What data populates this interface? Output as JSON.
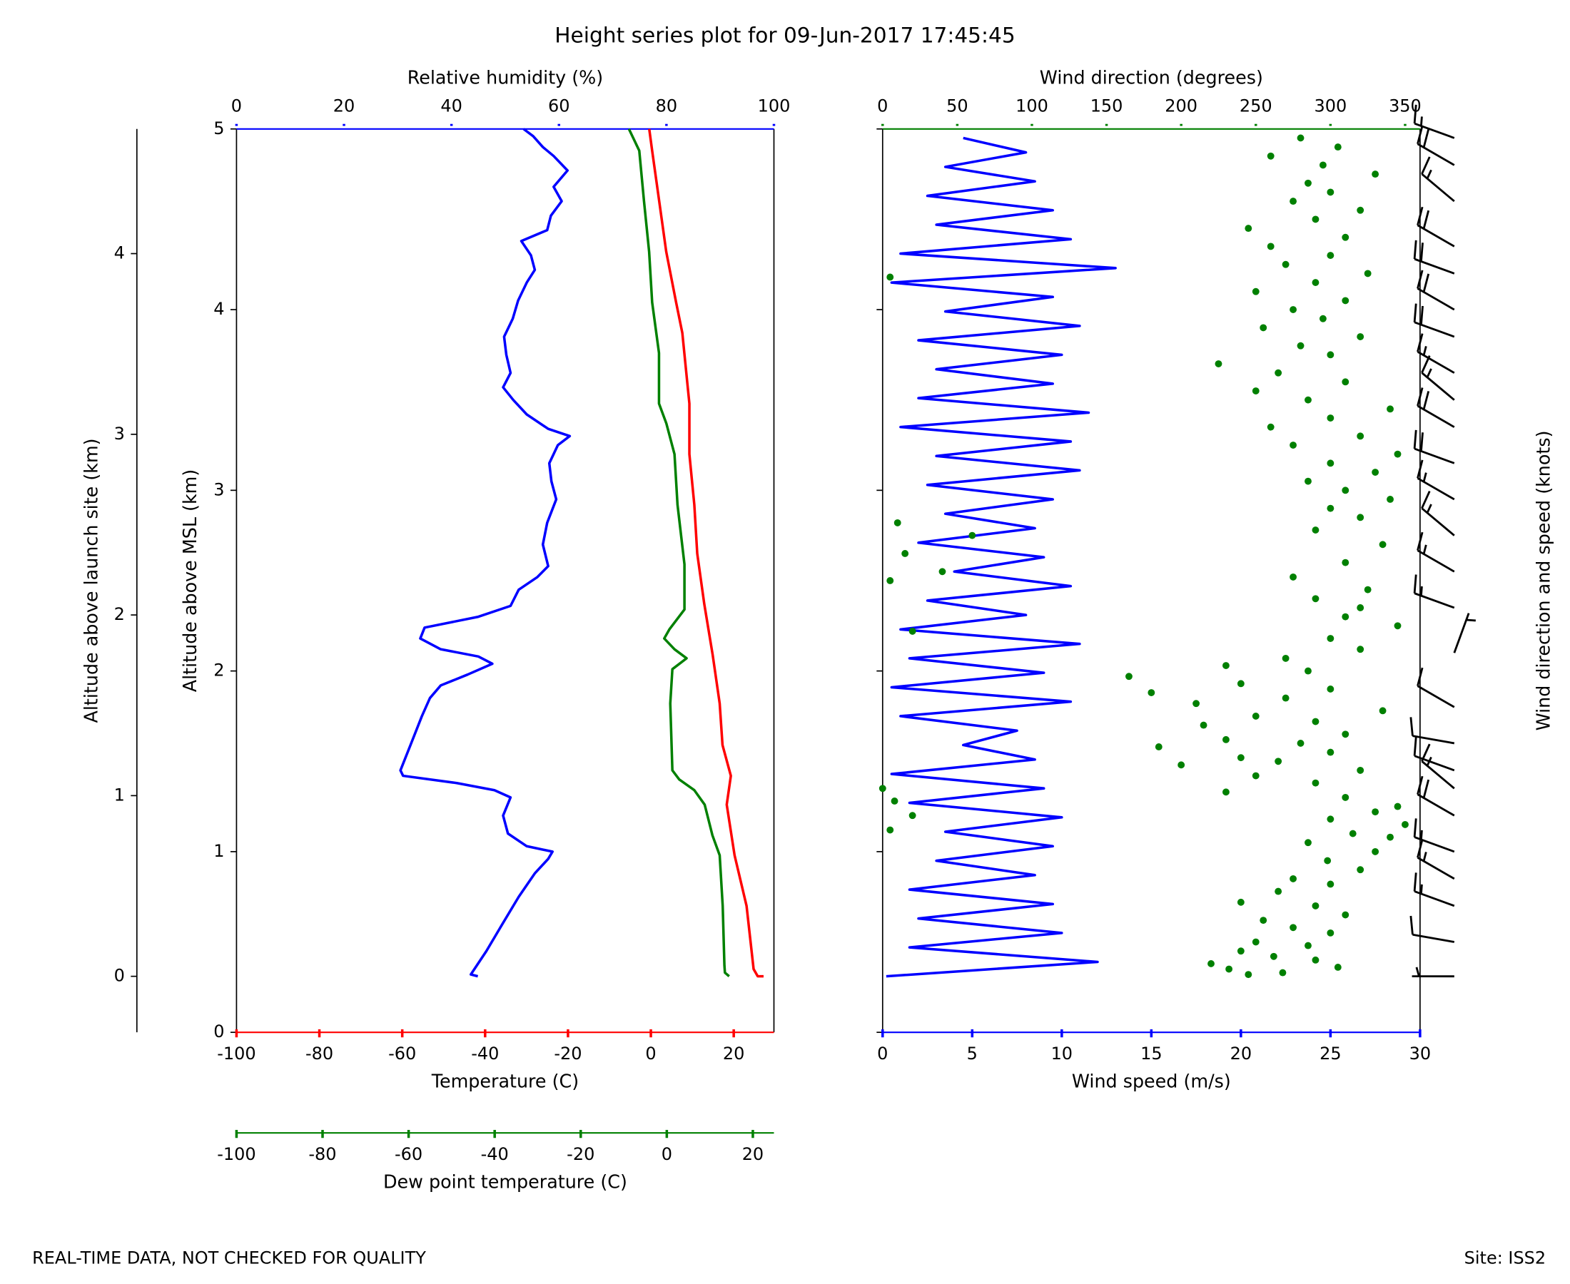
{
  "title": "Height series plot for 09-Jun-2017 17:45:45",
  "footer": {
    "left": "REAL-TIME DATA, NOT CHECKED FOR QUALITY",
    "right": "Site: ISS2"
  },
  "chart_data": [
    {
      "type": "profile",
      "ylabel": "Altitude above MSL (km)",
      "ylim": [
        0,
        5
      ],
      "yticks": [
        0,
        1,
        2,
        3,
        4,
        5
      ],
      "y2label": "Altitude above launch site (km)",
      "y2lim": [
        -0.31,
        4.69
      ],
      "y2ticks": [
        0,
        1,
        2,
        3,
        4
      ],
      "xaxes": [
        {
          "label": "Relative humidity (%)",
          "color": "#0000ff",
          "position": "top",
          "style": "line",
          "xlim": [
            0,
            100
          ],
          "xticks": [
            0,
            20,
            40,
            60,
            80,
            100
          ],
          "altitude": [
            0.31,
            0.32,
            0.45,
            0.6,
            0.75,
            0.88,
            0.96,
            1.0,
            1.03,
            1.1,
            1.2,
            1.3,
            1.34,
            1.38,
            1.42,
            1.45,
            1.6,
            1.75,
            1.85,
            1.92,
            1.98,
            2.04,
            2.08,
            2.12,
            2.18,
            2.24,
            2.3,
            2.36,
            2.45,
            2.52,
            2.58,
            2.7,
            2.82,
            2.95,
            3.05,
            3.15,
            3.25,
            3.3,
            3.34,
            3.42,
            3.5,
            3.57,
            3.65,
            3.75,
            3.85,
            3.95,
            4.05,
            4.15,
            4.22,
            4.3,
            4.38,
            4.44,
            4.52,
            4.6,
            4.68,
            4.77,
            4.85,
            4.9,
            4.96,
            5.0
          ],
          "values": [
            44.9,
            43.6,
            46.5,
            49.5,
            52.5,
            55.5,
            58,
            58.8,
            54,
            50.5,
            49.6,
            51,
            48,
            41,
            31,
            30.5,
            32.5,
            34.5,
            36,
            38,
            43,
            47.6,
            45,
            38,
            34.2,
            35,
            45,
            51,
            52.5,
            56,
            58,
            57,
            57.8,
            59.5,
            58.6,
            58.2,
            59.8,
            62,
            58,
            54,
            51.5,
            49.6,
            51,
            50.2,
            49.8,
            51.4,
            52.4,
            54,
            55.5,
            54.8,
            53,
            57.8,
            58.5,
            60.5,
            59,
            61.6,
            59,
            57,
            55.2,
            53.4
          ]
        },
        {
          "label": "Temperature (C)",
          "color": "#ff0000",
          "position": "bottom",
          "style": "line",
          "xlim": [
            -100,
            29.7
          ],
          "xticks": [
            -100,
            -80,
            -60,
            -40,
            -20,
            0,
            20
          ],
          "altitude": [
            0.31,
            0.31,
            0.35,
            0.7,
            0.98,
            1.26,
            1.42,
            1.59,
            1.82,
            2.09,
            2.37,
            2.65,
            2.92,
            3.2,
            3.48,
            3.59,
            3.87,
            4.04,
            4.32,
            4.6,
            4.88,
            5.0
          ],
          "values": [
            27.2,
            25.8,
            24.8,
            23.1,
            20.2,
            18.3,
            19.3,
            17.3,
            16.6,
            14.9,
            12.9,
            11.2,
            10.5,
            9.3,
            9.3,
            8.8,
            7.6,
            6.1,
            3.7,
            2.0,
            0.3,
            -0.4
          ]
        },
        {
          "label": "Dew point temperature (C)",
          "color": "#008000",
          "position": "bottom-offset",
          "style": "line",
          "xlim": [
            -100,
            24.9
          ],
          "xticks": [
            -100,
            -80,
            -60,
            -40,
            -20,
            0,
            20
          ],
          "altitude": [
            0.31,
            0.33,
            0.37,
            0.7,
            0.98,
            1.09,
            1.26,
            1.34,
            1.4,
            1.45,
            1.82,
            2.01,
            2.07,
            2.12,
            2.18,
            2.23,
            2.34,
            2.59,
            2.92,
            3.2,
            3.37,
            3.48,
            3.76,
            4.04,
            4.32,
            4.6,
            4.88,
            5.0
          ],
          "values": [
            14.5,
            13.5,
            13.4,
            13.0,
            12.3,
            10.6,
            8.8,
            6.4,
            2.9,
            1.3,
            0.8,
            1.3,
            4.6,
            1.8,
            -0.6,
            0.6,
            4.1,
            4.1,
            2.5,
            1.8,
            -0.1,
            -1.8,
            -1.8,
            -3.4,
            -4.1,
            -5.3,
            -6.4,
            -8.8
          ]
        }
      ]
    },
    {
      "type": "wind",
      "ylabel": "Wind direction and speed (knots)",
      "ylim": [
        0,
        5
      ],
      "yticks": [
        0,
        1,
        2,
        3,
        4,
        5
      ],
      "yticklabels": false,
      "xaxes": [
        {
          "label": "Wind speed (m/s)",
          "color": "#0000ff",
          "position": "bottom",
          "style": "line",
          "xlim": [
            0,
            30
          ],
          "xticks": [
            0,
            5,
            10,
            15,
            20,
            25,
            30
          ],
          "altitude": [
            0.31,
            0.39,
            0.47,
            0.55,
            0.63,
            0.71,
            0.79,
            0.87,
            0.95,
            1.03,
            1.11,
            1.19,
            1.27,
            1.35,
            1.43,
            1.51,
            1.59,
            1.67,
            1.75,
            1.83,
            1.91,
            1.99,
            2.07,
            2.15,
            2.23,
            2.31,
            2.39,
            2.47,
            2.55,
            2.63,
            2.71,
            2.79,
            2.87,
            2.95,
            3.03,
            3.11,
            3.19,
            3.27,
            3.35,
            3.43,
            3.51,
            3.59,
            3.67,
            3.75,
            3.83,
            3.91,
            3.99,
            4.07,
            4.15,
            4.23,
            4.31,
            4.39,
            4.47,
            4.55,
            4.63,
            4.71,
            4.79,
            4.87,
            4.95
          ],
          "values": [
            0.2,
            12,
            1.5,
            10,
            2,
            9.5,
            1.5,
            8.5,
            3,
            9.5,
            3.5,
            10,
            1.5,
            9,
            0.5,
            8.5,
            4.5,
            7.5,
            1,
            10.5,
            0.5,
            9,
            1.5,
            11,
            1,
            8,
            2.5,
            10.5,
            4,
            9,
            2,
            8.5,
            3.5,
            9.5,
            2.5,
            11,
            3,
            10.5,
            1,
            11.5,
            2,
            9.5,
            3,
            10,
            2,
            11,
            3.5,
            9.5,
            0.5,
            13,
            1,
            10.5,
            3,
            9.5,
            2.5,
            8.5,
            3.5,
            8,
            4.5
          ]
        },
        {
          "label": "Wind direction (degrees)",
          "color": "#008000",
          "position": "top",
          "style": "scatter",
          "xlim": [
            0,
            360
          ],
          "xticks": [
            0,
            50,
            100,
            150,
            200,
            250,
            300,
            350
          ],
          "altitude": [
            0.32,
            0.33,
            0.35,
            0.36,
            0.38,
            0.4,
            0.42,
            0.45,
            0.48,
            0.5,
            0.55,
            0.58,
            0.62,
            0.65,
            0.7,
            0.72,
            0.78,
            0.82,
            0.85,
            0.9,
            0.95,
            1.0,
            1.05,
            1.08,
            1.1,
            1.12,
            1.15,
            1.18,
            1.2,
            1.22,
            1.25,
            1.28,
            1.3,
            1.33,
            1.35,
            1.38,
            1.42,
            1.45,
            1.48,
            1.5,
            1.52,
            1.55,
            1.58,
            1.6,
            1.62,
            1.65,
            1.7,
            1.72,
            1.75,
            1.78,
            1.82,
            1.85,
            1.88,
            1.9,
            1.93,
            1.97,
            2.0,
            2.03,
            2.07,
            2.12,
            2.18,
            2.22,
            2.25,
            2.3,
            2.35,
            2.4,
            2.45,
            2.5,
            2.52,
            2.55,
            2.6,
            2.65,
            2.7,
            2.75,
            2.78,
            2.82,
            2.85,
            2.9,
            2.95,
            3.0,
            3.05,
            3.1,
            3.15,
            3.2,
            3.25,
            3.3,
            3.35,
            3.4,
            3.45,
            3.5,
            3.55,
            3.6,
            3.65,
            3.7,
            3.75,
            3.8,
            3.85,
            3.9,
            3.95,
            4.0,
            4.05,
            4.1,
            4.15,
            4.18,
            4.2,
            4.25,
            4.3,
            4.35,
            4.4,
            4.45,
            4.5,
            4.55,
            4.6,
            4.65,
            4.7,
            4.75,
            4.8,
            4.85,
            4.9,
            4.95
          ],
          "values": [
            245,
            268,
            232,
            305,
            220,
            290,
            262,
            240,
            285,
            250,
            300,
            275,
            255,
            310,
            290,
            240,
            265,
            300,
            275,
            320,
            298,
            330,
            285,
            340,
            315,
            5,
            350,
            300,
            20,
            330,
            345,
            8,
            310,
            230,
            0,
            290,
            250,
            320,
            200,
            265,
            240,
            300,
            185,
            280,
            230,
            310,
            215,
            290,
            250,
            335,
            210,
            270,
            180,
            300,
            240,
            165,
            285,
            230,
            270,
            320,
            300,
            20,
            345,
            310,
            320,
            290,
            325,
            5,
            275,
            40,
            310,
            15,
            335,
            60,
            290,
            10,
            320,
            300,
            340,
            310,
            285,
            330,
            300,
            345,
            275,
            320,
            260,
            300,
            340,
            285,
            250,
            310,
            265,
            225,
            300,
            280,
            320,
            255,
            295,
            275,
            310,
            250,
            290,
            5,
            325,
            270,
            300,
            260,
            310,
            245,
            290,
            320,
            275,
            300,
            285,
            330,
            295,
            260,
            305,
            280
          ]
        }
      ],
      "barbs": {
        "altitude": [
          0.31,
          0.5,
          0.7,
          0.85,
          1.0,
          1.2,
          1.35,
          1.45,
          1.6,
          1.8,
          2.1,
          2.35,
          2.55,
          2.75,
          2.95,
          3.15,
          3.35,
          3.5,
          3.65,
          3.85,
          4.0,
          4.2,
          4.35,
          4.6,
          4.8,
          4.95
        ],
        "direction": [
          270,
          280,
          290,
          300,
          290,
          300,
          310,
          290,
          280,
          300,
          20,
          290,
          300,
          310,
          300,
          290,
          300,
          310,
          300,
          290,
          300,
          290,
          300,
          310,
          300,
          290
        ],
        "speed": [
          5,
          10,
          15,
          15,
          15,
          20,
          15,
          10,
          10,
          10,
          5,
          15,
          15,
          15,
          15,
          20,
          20,
          15,
          15,
          20,
          20,
          20,
          20,
          15,
          20,
          15
        ]
      }
    }
  ]
}
